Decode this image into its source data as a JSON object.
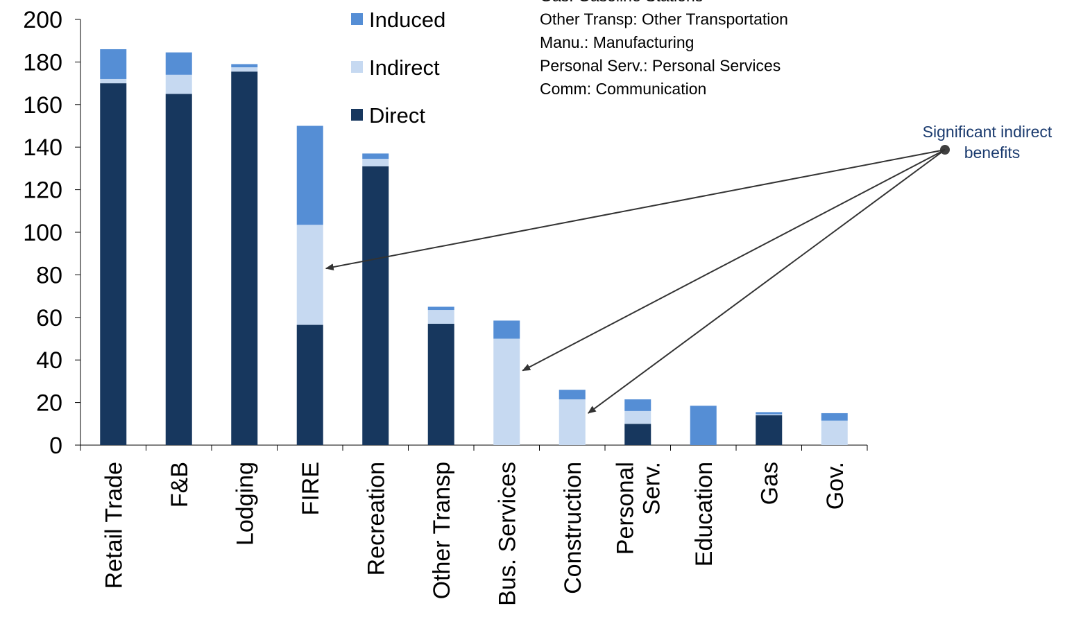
{
  "chart_data": {
    "type": "bar",
    "stacked": true,
    "title": "",
    "xlabel": "",
    "ylabel": "",
    "ylim": [
      0,
      200
    ],
    "yticks": [
      0,
      20,
      40,
      60,
      80,
      100,
      120,
      140,
      160,
      180,
      200
    ],
    "grid": false,
    "legend_position": "top-center",
    "categories": [
      [
        "Retail Trade"
      ],
      [
        "F&B"
      ],
      [
        "Lodging"
      ],
      [
        "FIRE"
      ],
      [
        "Recreation"
      ],
      [
        "Other Transp"
      ],
      [
        "Bus. Services"
      ],
      [
        "Construction"
      ],
      [
        "Personal",
        "Serv."
      ],
      [
        "Education"
      ],
      [
        "Gas"
      ],
      [
        "Gov."
      ]
    ],
    "series": [
      {
        "name": "Direct",
        "color": "#17375e",
        "values": [
          170,
          165,
          175.5,
          56.5,
          131,
          57,
          0,
          0,
          10,
          0,
          14,
          0
        ]
      },
      {
        "name": "Indirect",
        "color": "#c6d9f1",
        "values": [
          2,
          9,
          2,
          47,
          3.5,
          6.5,
          50,
          21.5,
          6,
          0,
          0.5,
          11.5
        ]
      },
      {
        "name": "Induced",
        "color": "#558ed5",
        "values": [
          14,
          10.5,
          1.5,
          46.5,
          2.5,
          1.5,
          8.5,
          4.5,
          5.5,
          18.5,
          1,
          3.5
        ]
      }
    ],
    "abbreviations": [
      "Gas: Gasoline Stations",
      "Other Transp: Other Transportation",
      "Manu.:  Manufacturing",
      "Personal Serv.: Personal Services",
      "Comm: Communication"
    ],
    "annotation": {
      "lines": [
        "Significant indirect",
        "benefits"
      ],
      "arrow_targets": [
        {
          "category_index": 3,
          "value": 83
        },
        {
          "category_index": 6,
          "value": 35
        },
        {
          "category_index": 7,
          "value": 15
        }
      ]
    }
  }
}
